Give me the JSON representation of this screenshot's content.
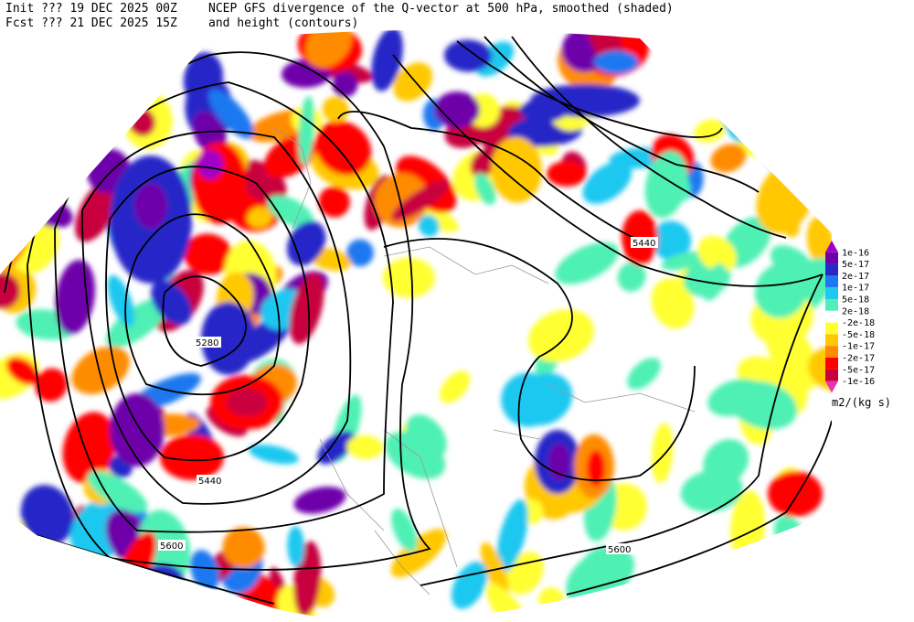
{
  "header": {
    "left_lines": [
      "Init  ??? 19 DEC 2025 00Z",
      "Fcst ??? 21 DEC 2025 15Z"
    ],
    "right_lines": [
      "NCEP GFS divergence of the Q-vector at 500 hPa, smoothed (shaded)",
      "and height (contours)"
    ]
  },
  "colorbar": {
    "labels": [
      "1e-16",
      "5e-17",
      "2e-17",
      "1e-17",
      "5e-18",
      "2e-18",
      "-2e-18",
      "-5e-18",
      "-1e-17",
      "-2e-17",
      "-5e-17",
      "-1e-16"
    ],
    "colors": [
      "#a000c8",
      "#6e00aa",
      "#2828c8",
      "#1e78f0",
      "#1ec8f0",
      "#50f0b4",
      "#ffffff",
      "#ffff32",
      "#ffc800",
      "#ff8c00",
      "#ff0000",
      "#c8003c",
      "#e632b4"
    ],
    "units": "m2/(kg s)"
  },
  "contour_labels": [
    "5440",
    "5280",
    "5440",
    "5600",
    "5600"
  ]
}
